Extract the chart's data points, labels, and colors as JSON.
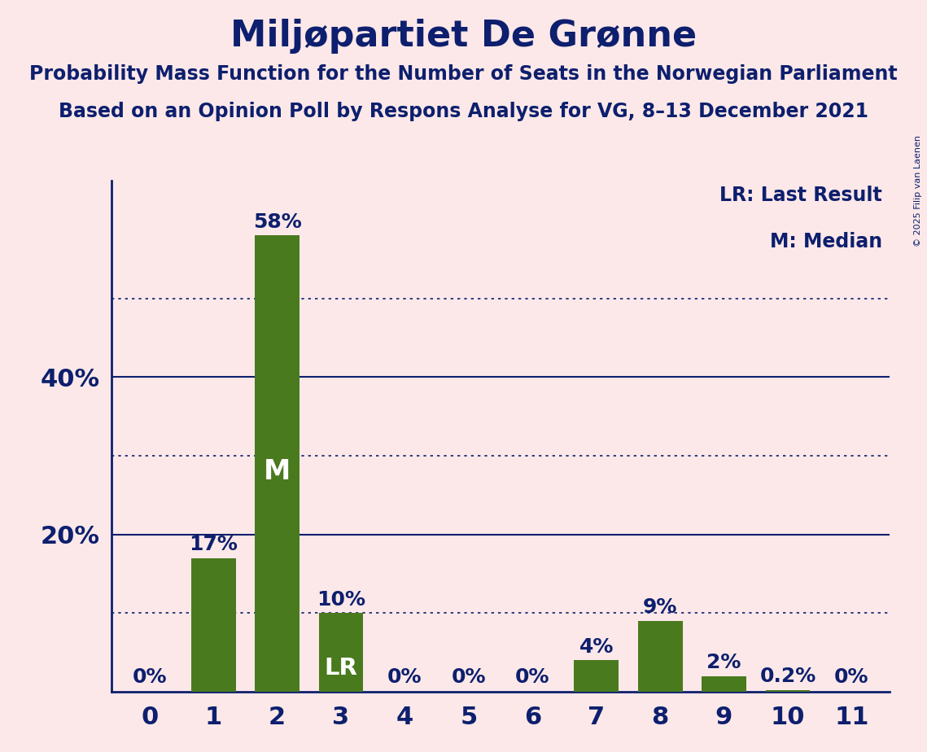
{
  "title": "Miljøpartiet De Grønne",
  "subtitle1": "Probability Mass Function for the Number of Seats in the Norwegian Parliament",
  "subtitle2": "Based on an Opinion Poll by Respons Analyse for VG, 8–13 December 2021",
  "copyright": "© 2025 Filip van Laenen",
  "categories": [
    0,
    1,
    2,
    3,
    4,
    5,
    6,
    7,
    8,
    9,
    10,
    11
  ],
  "values": [
    0.0,
    17.0,
    58.0,
    10.0,
    0.0,
    0.0,
    0.0,
    4.0,
    9.0,
    2.0,
    0.2,
    0.0
  ],
  "bar_color": "#4a7a1e",
  "background_color": "#fce8e8",
  "title_color": "#0d1f6e",
  "axis_color": "#0d1f6e",
  "label_color": "#0d1f6e",
  "grid_color": "#0d1f6e",
  "solid_yticks": [
    20,
    40
  ],
  "dotted_yticks": [
    10,
    30,
    50
  ],
  "ylim": [
    0,
    65
  ],
  "legend_lr": "LR: Last Result",
  "legend_m": "M: Median",
  "lr_bar": 3,
  "median_bar": 2,
  "title_fontsize": 32,
  "subtitle_fontsize": 17,
  "bar_label_fontsize": 18,
  "tick_fontsize": 22,
  "ytick_fontsize": 22,
  "legend_fontsize": 17,
  "copyright_fontsize": 8
}
